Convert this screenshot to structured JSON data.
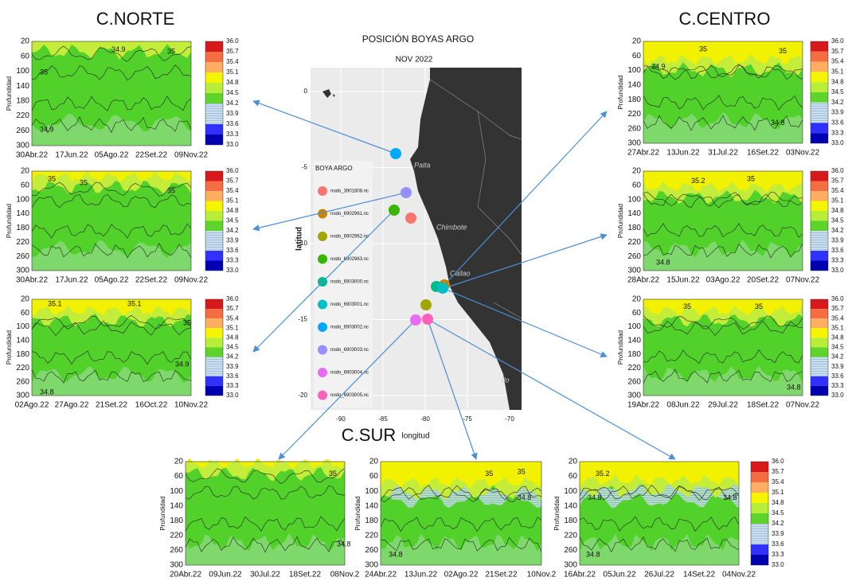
{
  "sections": {
    "north": "C.NORTE",
    "center": "C.CENTRO",
    "south": "C.SUR"
  },
  "map": {
    "title": "POSICIÓN BOYAS ARGO",
    "subtitle": "NOV 2022",
    "legend_title": "BOYA ARGO",
    "legend": [
      "nodo_3901808.nc",
      "nodo_6902961.nc",
      "nodo_6902962.nc",
      "nodo_6902963.nc",
      "nodo_6903000.nc",
      "nodo_6903001.nc",
      "nodo_6903002.nc",
      "nodo_6903003.nc",
      "nodo_6903004.nc",
      "nodo_6903005.nc"
    ],
    "colors": [
      "#f8766d",
      "#c98500",
      "#a3a500",
      "#39b600",
      "#00bb8b",
      "#00bfc4",
      "#00a9ff",
      "#9590ff",
      "#e76bf3",
      "#ff62bc"
    ],
    "x_label": "longitud",
    "y_label": "latitud",
    "x_ticks": [
      -90,
      -85,
      -80,
      -75,
      -70
    ],
    "y_ticks": [
      0,
      -5,
      -10,
      -15,
      -20
    ],
    "places": [
      "Paita",
      "Chimbote",
      "Callao",
      "Ilo"
    ]
  },
  "y_label": "Profundidad",
  "y_ticks": [
    20,
    60,
    100,
    140,
    180,
    220,
    260,
    300
  ],
  "colorbar": [
    "36.0",
    "35.7",
    "35.4",
    "35.1",
    "34.8",
    "34.5",
    "34.2",
    "33.9",
    "33.6",
    "33.3",
    "33.0"
  ],
  "panels": [
    {
      "x_labels": [
        "30Abr.22",
        "17Jun.22",
        "05Ago.22",
        "22Set.22",
        "09Nov.22"
      ],
      "contours": [
        "34.9",
        "35",
        "35",
        "34.9"
      ]
    },
    {
      "x_labels": [
        "30Abr.22",
        "17Jun.22",
        "05Ago.22",
        "22Set.22",
        "09Nov.22"
      ],
      "contours": [
        "35",
        "35",
        "35"
      ]
    },
    {
      "x_labels": [
        "02Ago.22",
        "27Ago.22",
        "21Set.22",
        "16Oct.22",
        "10Nov.22"
      ],
      "contours": [
        "35.1",
        "35.1",
        "35",
        "34.9",
        "34.8"
      ]
    },
    {
      "x_labels": [
        "27Abr.22",
        "13Jun.22",
        "31Jul.22",
        "16Set.22",
        "03Nov.22"
      ],
      "contours": [
        "35",
        "35",
        "34.9",
        "34.8"
      ]
    },
    {
      "x_labels": [
        "28Abr.22",
        "15Jun.22",
        "03Ago.22",
        "20Set.22",
        "07Nov.22"
      ],
      "contours": [
        "35.2",
        "35",
        "34.8"
      ]
    },
    {
      "x_labels": [
        "19Abr.22",
        "08Jun.22",
        "29Jul.22",
        "18Set.22",
        "07Nov.22"
      ],
      "contours": [
        "35",
        "35",
        "34.8"
      ]
    },
    {
      "x_labels": [
        "20Abr.22",
        "09Jun.22",
        "30Jul.22",
        "18Set.22",
        "08Nov.2"
      ],
      "contours": [
        "35",
        "34.8"
      ]
    },
    {
      "x_labels": [
        "24Abr.22",
        "13Jun.22",
        "02Ago.22",
        "21Set.22",
        "10Nov.2"
      ],
      "contours": [
        "35",
        "35",
        "34.8",
        "34.8"
      ]
    },
    {
      "x_labels": [
        "16Abr.22",
        "05Jun.22",
        "26Jul.22",
        "14Set.22",
        "04Nov.22"
      ],
      "contours": [
        "35.2",
        "34.8",
        "34.8",
        "34.8"
      ]
    }
  ]
}
